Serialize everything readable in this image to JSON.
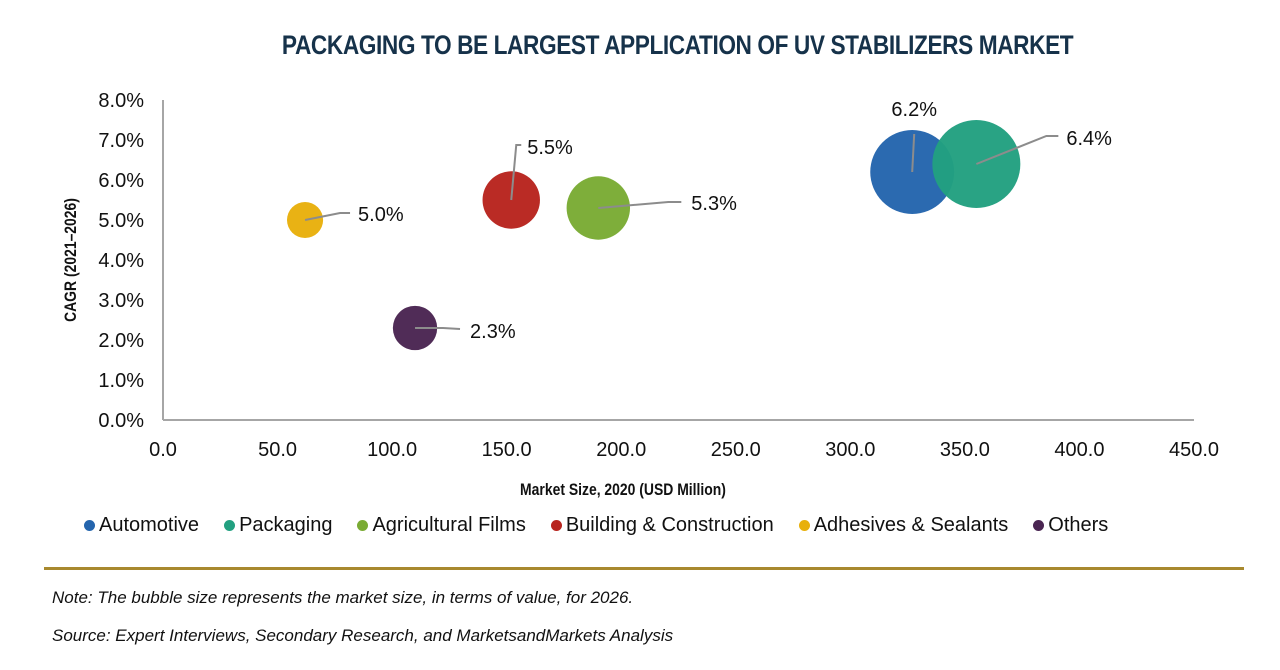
{
  "chart_data": {
    "type": "bubble",
    "title": "PACKAGING TO BE LARGEST APPLICATION OF UV STABILIZERS MARKET",
    "xlabel": "Market Size, 2020 (USD Million)",
    "ylabel": "CAGR (2021–2026)",
    "xlim": [
      0,
      450
    ],
    "ylim": [
      0,
      8
    ],
    "x_ticks": [
      "0.0",
      "50.0",
      "100.0",
      "150.0",
      "200.0",
      "250.0",
      "300.0",
      "350.0",
      "400.0",
      "450.0"
    ],
    "x_tick_values": [
      0,
      50,
      100,
      150,
      200,
      250,
      300,
      350,
      400,
      450
    ],
    "y_ticks": [
      "0.0%",
      "1.0%",
      "2.0%",
      "3.0%",
      "4.0%",
      "5.0%",
      "6.0%",
      "7.0%",
      "8.0%"
    ],
    "y_tick_values": [
      0,
      1,
      2,
      3,
      4,
      5,
      6,
      7,
      8
    ],
    "grid": false,
    "legend_position": "bottom",
    "size_note": "bubble size = market size 2026 (relative)",
    "series": [
      {
        "name": "Automotive",
        "color": "#2465ad",
        "x": 327,
        "y": 6.2,
        "size": 448,
        "label": "6.2%"
      },
      {
        "name": "Packaging",
        "color": "#22a080",
        "x": 355,
        "y": 6.4,
        "size": 493,
        "label": "6.4%"
      },
      {
        "name": "Agricultural Films",
        "color": "#7aab34",
        "x": 190,
        "y": 5.3,
        "size": 256,
        "label": "5.3%"
      },
      {
        "name": "Building & Construction",
        "color": "#b8241e",
        "x": 152,
        "y": 5.5,
        "size": 210,
        "label": "5.5%"
      },
      {
        "name": "Adhesives & Sealants",
        "color": "#e8b00c",
        "x": 62,
        "y": 5.0,
        "size": 83,
        "label": "5.0%"
      },
      {
        "name": "Others",
        "color": "#4a2552",
        "x": 110,
        "y": 2.3,
        "size": 125,
        "label": "2.3%"
      }
    ]
  },
  "footer": {
    "note": "Note: The bubble size represents the market size, in terms of value, for 2026.",
    "source": "Source: Expert Interviews, Secondary Research, and MarketsandMarkets Analysis"
  }
}
